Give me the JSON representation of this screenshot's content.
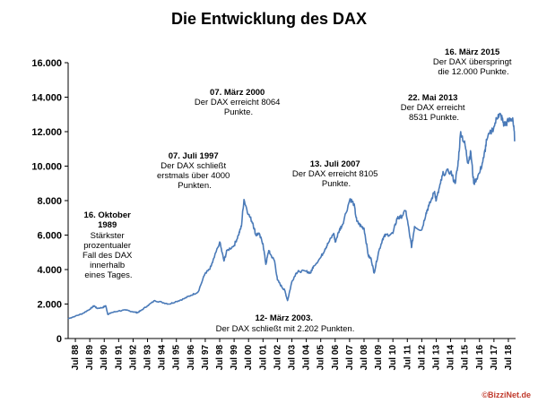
{
  "chart_data": {
    "type": "line",
    "title": "Die Entwicklung des DAX",
    "xlabel": "",
    "ylabel": "",
    "ylim": [
      0,
      16000
    ],
    "y_ticks": [
      "0",
      "2.000",
      "4.000",
      "6.000",
      "8.000",
      "10.000",
      "12.000",
      "14.000",
      "16.000"
    ],
    "x_ticks": [
      "Jul 88",
      "Jul 89",
      "Jul 90",
      "Jul 91",
      "Jul 92",
      "Jul 93",
      "Jul 94",
      "Jul 95",
      "Jul 96",
      "Jul 97",
      "Jul 98",
      "Jul 99",
      "Jul 00",
      "Jul 01",
      "Jul 02",
      "Jul 03",
      "Jul 04",
      "Jul 05",
      "Jul 06",
      "Jul 07",
      "Jul 08",
      "Jul 09",
      "Jul 10",
      "Jul 11",
      "Jul 12",
      "Jul 13",
      "Jul 14",
      "Jul 15",
      "Jul 16",
      "Jul 17",
      "Jul 18"
    ],
    "grid": false,
    "line_color": "#4a7ab8",
    "x": [
      1988.0,
      1988.5,
      1989.0,
      1989.5,
      1989.8,
      1990.0,
      1990.4,
      1990.6,
      1990.75,
      1991.0,
      1991.5,
      1992.0,
      1992.5,
      1992.8,
      1993.0,
      1993.5,
      1994.0,
      1994.5,
      1995.0,
      1995.5,
      1996.0,
      1996.5,
      1997.0,
      1997.5,
      1997.8,
      1998.0,
      1998.5,
      1998.8,
      1999.0,
      1999.5,
      1999.8,
      2000.0,
      2000.18,
      2000.5,
      2000.8,
      2001.0,
      2001.2,
      2001.5,
      2001.7,
      2001.9,
      2002.0,
      2002.3,
      2002.5,
      2002.8,
      2003.0,
      2003.2,
      2003.5,
      2003.8,
      2004.0,
      2004.5,
      2004.8,
      2005.0,
      2005.5,
      2005.8,
      2006.0,
      2006.4,
      2006.5,
      2006.8,
      2007.0,
      2007.53,
      2007.8,
      2008.0,
      2008.3,
      2008.5,
      2008.8,
      2009.0,
      2009.2,
      2009.5,
      2009.8,
      2010.0,
      2010.5,
      2010.8,
      2011.0,
      2011.4,
      2011.7,
      2011.8,
      2012.0,
      2012.5,
      2012.8,
      2013.0,
      2013.39,
      2013.5,
      2013.8,
      2014.0,
      2014.5,
      2014.8,
      2015.0,
      2015.2,
      2015.5,
      2015.7,
      2015.9,
      2016.1,
      2016.5,
      2016.8,
      2017.0,
      2017.5,
      2017.8,
      2018.0,
      2018.2,
      2018.5,
      2018.8,
      2018.95
    ],
    "values": [
      1150,
      1300,
      1450,
      1700,
      1900,
      1750,
      1800,
      1900,
      1400,
      1500,
      1600,
      1650,
      1550,
      1500,
      1600,
      1900,
      2200,
      2100,
      2000,
      2150,
      2300,
      2500,
      2700,
      3800,
      4000,
      4400,
      5600,
      4500,
      5100,
      5400,
      6000,
      6500,
      8064,
      7200,
      6700,
      6000,
      6100,
      5500,
      4300,
      5100,
      4900,
      4500,
      3400,
      3000,
      2800,
      2202,
      3300,
      3800,
      3900,
      3900,
      3800,
      4200,
      4700,
      5200,
      5500,
      6100,
      5600,
      6300,
      6600,
      8105,
      7800,
      6800,
      6500,
      6400,
      4800,
      4600,
      3800,
      5000,
      5800,
      6000,
      6100,
      7000,
      7000,
      7400,
      5800,
      5300,
      6500,
      6300,
      7300,
      7700,
      8531,
      8000,
      9000,
      9600,
      9700,
      9000,
      10000,
      12000,
      11200,
      10200,
      10800,
      9000,
      9600,
      10500,
      11500,
      12300,
      13000,
      12900,
      12400,
      12600,
      12800,
      11500
    ]
  },
  "annotations": [
    {
      "date": "16. Oktober 1989",
      "lines": [
        "Stärkster",
        "prozentualer",
        "Fall des DAX",
        "innerhalb",
        "eines Tages."
      ]
    },
    {
      "date": "07. Juli 1997",
      "lines": [
        "Der DAX schließt",
        "erstmals über 4000",
        "Punkten."
      ]
    },
    {
      "date": "07. März 2000",
      "lines": [
        "Der DAX erreicht 8064",
        "Punkte."
      ]
    },
    {
      "date": "12- März 2003.",
      "lines": [
        "Der DAX schließt  mit 2.202 Punkten."
      ]
    },
    {
      "date": "13. Juli 2007",
      "lines": [
        "Der DAX erreicht  8105",
        "Punkte."
      ]
    },
    {
      "date": "22. Mai 2013",
      "lines": [
        "Der DAX erreicht",
        "8531 Punkte."
      ]
    },
    {
      "date": "16. März 2015",
      "lines": [
        "Der DAX überspringt",
        "die 12.000 Punkte."
      ]
    }
  ],
  "credit": "©BizziNet.de",
  "colors": {
    "line": "#4a7ab8",
    "axis": "#000000",
    "credit_red": "#c0392b"
  }
}
